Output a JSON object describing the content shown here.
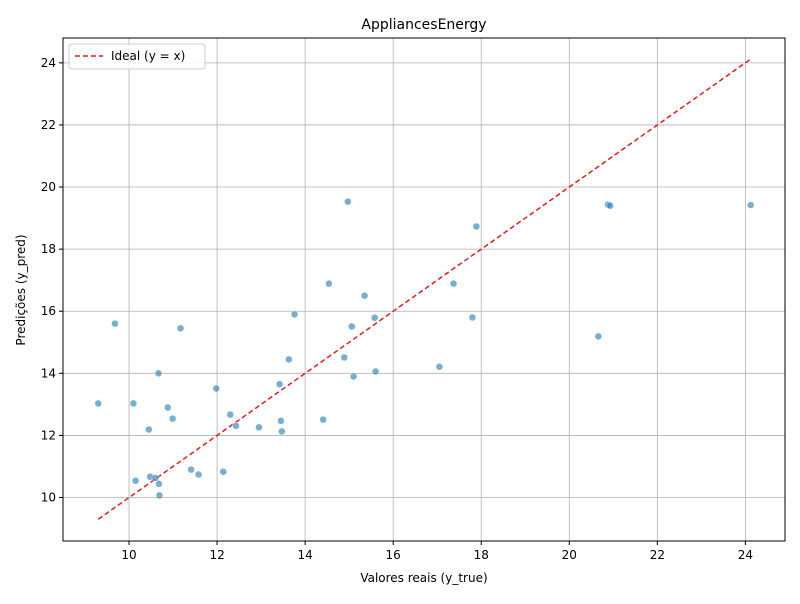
{
  "chart_data": {
    "type": "scatter",
    "title": "AppliancesEnergy",
    "xlabel": "Valores reais (y_true)",
    "ylabel": "Predições (y_pred)",
    "xlim": [
      8.5,
      24.9
    ],
    "ylim": [
      8.6,
      24.8
    ],
    "xticks": [
      "10",
      "12",
      "14",
      "16",
      "18",
      "20",
      "22",
      "24"
    ],
    "yticks": [
      "10",
      "12",
      "14",
      "16",
      "18",
      "20",
      "22",
      "24"
    ],
    "grid": true,
    "legend_position": "upper-left",
    "point_color": "#1f77b4",
    "line_color": "#e31a1c",
    "series": [
      {
        "type": "scatter",
        "x": [
          9.3,
          9.68,
          10.1,
          10.15,
          10.45,
          10.48,
          10.6,
          10.67,
          10.68,
          10.69,
          10.88,
          10.99,
          11.17,
          11.41,
          11.58,
          11.98,
          12.14,
          12.3,
          12.43,
          12.95,
          13.42,
          13.45,
          13.47,
          13.63,
          13.76,
          14.41,
          14.54,
          14.89,
          14.97,
          15.06,
          15.1,
          15.35,
          15.58,
          15.6,
          17.05,
          17.37,
          17.8,
          17.89,
          20.66,
          20.88,
          20.93,
          24.12
        ],
        "y": [
          13.03,
          15.6,
          13.03,
          10.54,
          12.19,
          10.67,
          10.63,
          14.0,
          10.44,
          10.07,
          12.9,
          12.54,
          15.45,
          10.9,
          10.74,
          13.51,
          10.83,
          12.67,
          12.31,
          12.26,
          13.65,
          12.47,
          12.13,
          14.45,
          15.9,
          12.51,
          16.89,
          14.51,
          19.53,
          15.51,
          13.9,
          16.5,
          15.79,
          14.06,
          14.21,
          16.89,
          15.8,
          18.73,
          15.19,
          19.43,
          19.4,
          19.42
        ]
      },
      {
        "name": "Ideal (y = x)",
        "type": "line",
        "style": "dashed",
        "x": [
          9.3,
          24.12
        ],
        "y": [
          9.3,
          24.12
        ]
      }
    ]
  }
}
